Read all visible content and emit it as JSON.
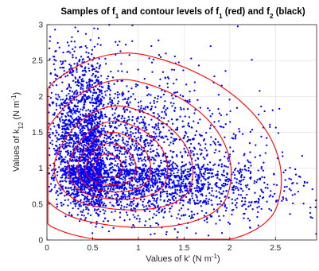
{
  "chart_data": {
    "type": "scatter",
    "title": {
      "p1": "Samples of f",
      "s1": "1",
      "p2": " and contour levels of f",
      "s2": "1",
      "p3": " (red) and f",
      "s3": "2",
      "p4": " (black)"
    },
    "xlabel": {
      "main": "Values of k' (N m",
      "sup": "-1",
      "end": ")"
    },
    "ylabel": {
      "main": "Values of k",
      "sub": "12",
      "mid": " (N m",
      "sup": "-1",
      "end": ")"
    },
    "xlim": [
      0,
      2.95
    ],
    "ylim": [
      0,
      3
    ],
    "xticks": [
      0,
      0.5,
      1,
      1.5,
      2,
      2.5
    ],
    "xtick_labels": [
      "0",
      "0.5",
      "1",
      "1.5",
      "2",
      "2.5"
    ],
    "yticks": [
      0,
      0.5,
      1,
      1.5,
      2,
      2.5,
      3
    ],
    "ytick_labels": [
      "0",
      "0.5",
      "1",
      "1.5",
      "2",
      "2.5",
      "3"
    ],
    "grid": true,
    "series": [
      {
        "role": "samples",
        "color": "#0000ff",
        "marker": "dot",
        "distribution": {
          "mode": [
            0.6,
            1.0
          ],
          "spread_x": [
            0.28,
            0.9
          ],
          "spread_y": [
            0.32,
            0.75
          ],
          "correlation": -0.35,
          "n": 4500
        }
      },
      {
        "role": "contours",
        "color": "#ff0000",
        "center": [
          0.62,
          1.0
        ],
        "levels": [
          {
            "rx": 0.22,
            "ry": 0.22
          },
          {
            "rx": 0.38,
            "ry": 0.38
          },
          {
            "rx": 0.55,
            "ry": 0.55
          },
          {
            "rx": 0.75,
            "ry": 0.72
          },
          {
            "rx": 1.05,
            "ry": 0.95
          },
          {
            "rx": 1.5,
            "ry": 1.35
          },
          {
            "rx": 2.1,
            "ry": 1.75
          }
        ]
      }
    ]
  },
  "colors": {
    "samples": "#0000ff",
    "contours": "#ff0000",
    "axes": "#262626",
    "grid": "#e6e6e6"
  }
}
